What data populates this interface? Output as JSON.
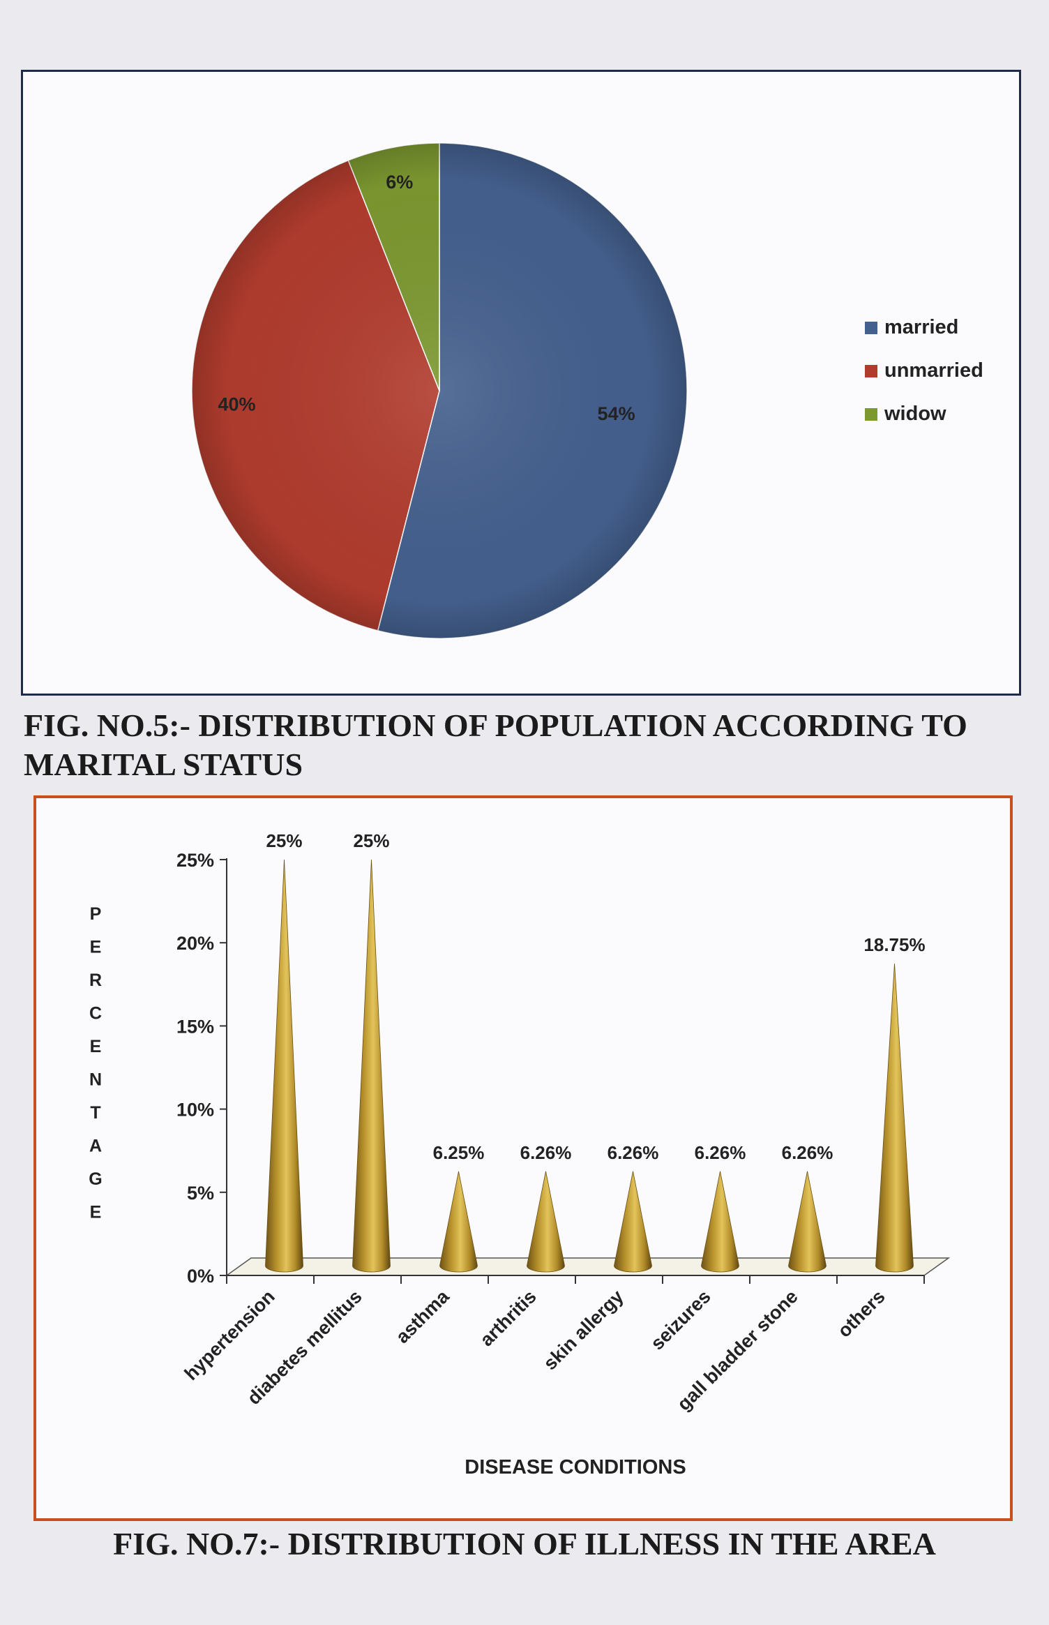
{
  "figure5": {
    "caption": "FIG. NO.5:- DISTRIBUTION OF POPULATION ACCORDING TO MARITAL STATUS",
    "chart_data": {
      "type": "pie",
      "slices": [
        {
          "label": "married",
          "value": 54,
          "display": "54%",
          "color": "#44608e"
        },
        {
          "label": "unmarried",
          "value": 40,
          "display": "40%",
          "color": "#b13c2e"
        },
        {
          "label": "widow",
          "value": 6,
          "display": "6%",
          "color": "#7c9830"
        }
      ],
      "legend": "right"
    }
  },
  "figure7": {
    "caption": "FIG. NO.7:- DISTRIBUTION OF ILLNESS IN THE AREA",
    "chart_data": {
      "type": "bar",
      "bar_style": "cone",
      "xlabel": "DISEASE CONDITIONS",
      "ylabel": "PERCENTAGE",
      "ylim": [
        0,
        25
      ],
      "yticks": [
        "0%",
        "5%",
        "10%",
        "15%",
        "20%",
        "25%"
      ],
      "categories": [
        "hypertension",
        "diabetes mellitus",
        "asthma",
        "arthritis",
        "skin allergy",
        "seizures",
        "gall bladder stone",
        "others"
      ],
      "values": [
        25,
        25,
        6.25,
        6.26,
        6.26,
        6.26,
        6.26,
        18.75
      ],
      "data_labels": [
        "25%",
        "25%",
        "6.25%",
        "6.26%",
        "6.26%",
        "6.26%",
        "6.26%",
        "18.75%"
      ],
      "color": "#c9a437"
    }
  }
}
